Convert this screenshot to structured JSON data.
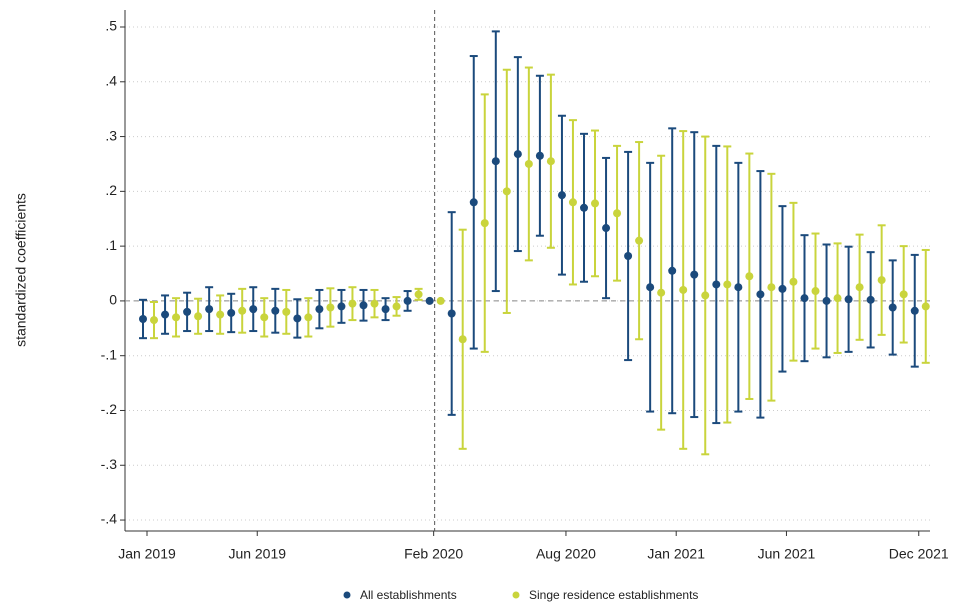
{
  "chart_data": {
    "type": "errorbar",
    "ylabel": "standardized coefficients",
    "categories": [
      "Jan 2019",
      null,
      null,
      null,
      null,
      "Jun 2019",
      null,
      null,
      null,
      null,
      null,
      null,
      null,
      "Feb 2020",
      null,
      null,
      null,
      null,
      null,
      "Aug 2020",
      null,
      null,
      null,
      null,
      "Jan 2021",
      null,
      null,
      null,
      null,
      "Jun 2021",
      null,
      null,
      null,
      null,
      null,
      "Dec 2021"
    ],
    "series": [
      {
        "name": "All establishments",
        "color": "#1b4a7c",
        "values": [
          -0.033,
          -0.025,
          -0.02,
          -0.015,
          -0.022,
          -0.015,
          -0.018,
          -0.032,
          -0.015,
          -0.01,
          -0.008,
          -0.015,
          0.0,
          0.0,
          -0.023,
          0.18,
          0.255,
          0.268,
          0.265,
          0.193,
          0.17,
          0.133,
          0.082,
          0.025,
          0.055,
          0.048,
          0.03,
          0.025,
          0.012,
          0.022,
          0.005,
          0.0,
          0.003,
          0.002,
          -0.012,
          -0.018
        ],
        "errors": [
          0.035,
          0.035,
          0.035,
          0.04,
          0.035,
          0.04,
          0.04,
          0.035,
          0.035,
          0.03,
          0.028,
          0.02,
          0.018,
          0,
          0.185,
          0.267,
          0.237,
          0.177,
          0.146,
          0.145,
          0.135,
          0.128,
          0.19,
          0.227,
          0.26,
          0.26,
          0.253,
          0.227,
          0.225,
          0.151,
          0.115,
          0.103,
          0.096,
          0.087,
          0.086,
          0.102
        ]
      },
      {
        "name": "Singe residence establishments",
        "color": "#c9d43c",
        "values": [
          -0.035,
          -0.03,
          -0.028,
          -0.025,
          -0.018,
          -0.03,
          -0.02,
          -0.03,
          -0.012,
          -0.005,
          -0.005,
          -0.01,
          0.012,
          0.0,
          -0.07,
          0.142,
          0.2,
          0.25,
          0.255,
          0.18,
          0.178,
          0.16,
          0.11,
          0.015,
          0.02,
          0.01,
          0.03,
          0.045,
          0.025,
          0.035,
          0.018,
          0.005,
          0.025,
          0.038,
          0.012,
          -0.01
        ],
        "errors": [
          0.033,
          0.035,
          0.032,
          0.035,
          0.04,
          0.035,
          0.04,
          0.035,
          0.035,
          0.03,
          0.025,
          0.017,
          0.01,
          0,
          0.2,
          0.235,
          0.222,
          0.176,
          0.158,
          0.15,
          0.133,
          0.123,
          0.18,
          0.25,
          0.29,
          0.29,
          0.252,
          0.224,
          0.207,
          0.144,
          0.105,
          0.1,
          0.096,
          0.1,
          0.088,
          0.103
        ]
      }
    ],
    "ylim": [
      -0.42,
      0.5
    ],
    "yticks": [
      {
        "value": 0.5,
        "label": ".5"
      },
      {
        "value": 0.4,
        "label": ".4"
      },
      {
        "value": 0.3,
        "label": ".3"
      },
      {
        "value": 0.2,
        "label": ".2"
      },
      {
        "value": 0.1,
        "label": ".1"
      },
      0,
      {
        "value": -0.1,
        "label": "-.1"
      },
      {
        "value": -0.2,
        "label": "-.2"
      },
      {
        "value": -0.3,
        "label": "-.3"
      },
      {
        "value": -0.4,
        "label": "-.4"
      }
    ],
    "grid": true,
    "hline": 0,
    "vline": 13,
    "legend": "bottom"
  }
}
